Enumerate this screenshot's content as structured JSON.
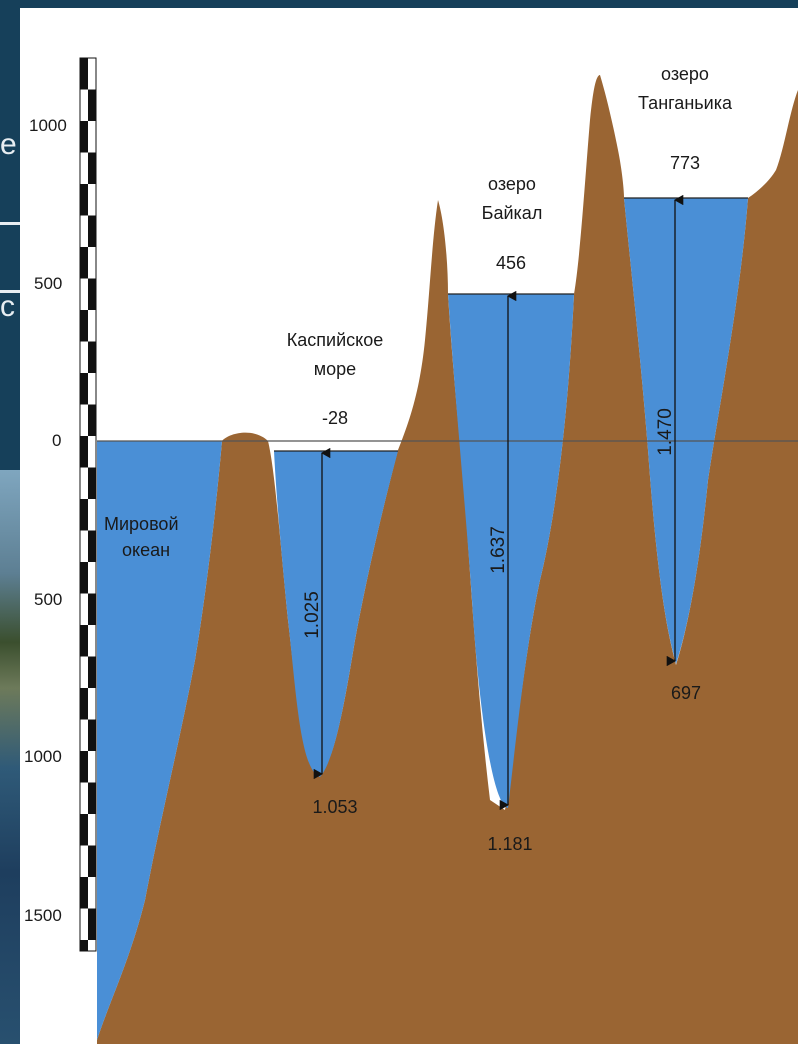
{
  "colors": {
    "water": "#4a8fd6",
    "land": "#9a6533",
    "background_slide": "#16405a",
    "panel": "#ffffff"
  },
  "slide_title_fragments": {
    "line1": "е",
    "line2": "с"
  },
  "scale": {
    "top_marks": [
      "1000",
      "500",
      "0"
    ],
    "bottom_marks": [
      "500",
      "1000",
      "1500"
    ]
  },
  "bodies": {
    "ocean": {
      "name_line1": "Мировой",
      "name_line2": "океан"
    },
    "caspian": {
      "name_line1": "Каспийское",
      "name_line2": "море",
      "surface_level": "-28",
      "depth": "1.025",
      "bottom_level": "1.053"
    },
    "baikal": {
      "name_line1": "озеро",
      "name_line2": "Байкал",
      "surface_level": "456",
      "depth": "1.637",
      "bottom_level": "1.181"
    },
    "tanganyika": {
      "name_line1": "озеро",
      "name_line2": "Танганьика",
      "surface_level": "773",
      "depth": "1.470",
      "bottom_level": "697"
    }
  }
}
